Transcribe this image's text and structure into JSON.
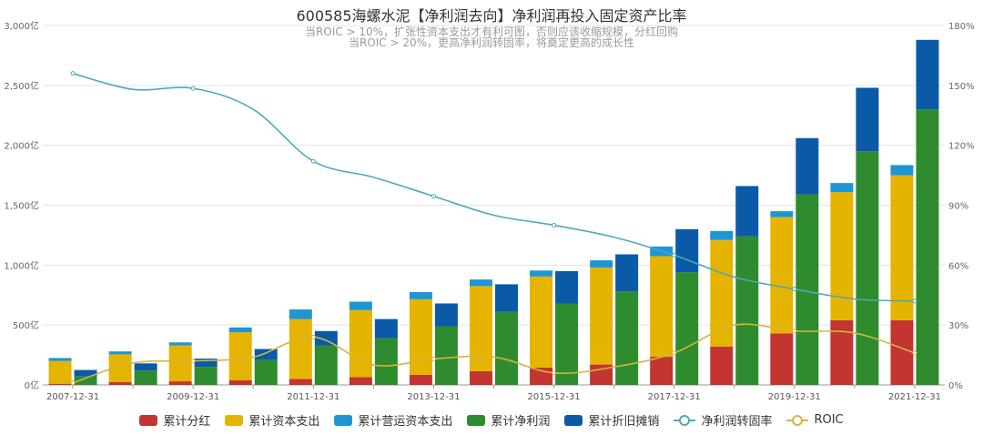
{
  "chart_data": {
    "type": "bar",
    "title": "600585海螺水泥【净利润去向】净利润再投入固定资产比率",
    "subtitle_lines": [
      "当ROIC > 10%，扩张性资本支出才有利可图，否则应该收缩规模，分红回购",
      "当ROIC > 20%，更高净利润转固率，将奠定更高的成长性"
    ],
    "categories": [
      "2007-12-31",
      "2008-12-31",
      "2009-12-31",
      "2010-12-31",
      "2011-12-31",
      "2012-12-31",
      "2013-12-31",
      "2014-12-31",
      "2015-12-31",
      "2016-12-31",
      "2017-12-31",
      "2018-12-31",
      "2019-12-31",
      "2020-12-31",
      "2021-12-31"
    ],
    "x_tick_labels": [
      "2007-12-31",
      "2009-12-31",
      "2011-12-31",
      "2013-12-31",
      "2015-12-31",
      "2017-12-31",
      "2019-12-31",
      "2021-12-31"
    ],
    "y_left": {
      "min": 0,
      "max": 3000,
      "step": 500,
      "tick_labels": [
        "0亿",
        "500亿",
        "1,000亿",
        "1,500亿",
        "2,000亿",
        "2,500亿",
        "3,000亿"
      ]
    },
    "y_right": {
      "min": 0,
      "max": 180,
      "step": 30,
      "tick_labels": [
        "0%",
        "30%",
        "60%",
        "90%",
        "120%",
        "150%",
        "180%"
      ]
    },
    "stack_a": {
      "label": "分红+资本支出+营运资本支出",
      "series": [
        {
          "name": "累计分红",
          "color": "#c23531",
          "values": [
            10,
            25,
            30,
            40,
            50,
            65,
            85,
            115,
            145,
            170,
            235,
            320,
            430,
            540,
            540
          ]
        },
        {
          "name": "累计资本支出",
          "color": "#e5b400",
          "values": [
            190,
            230,
            300,
            400,
            500,
            560,
            630,
            710,
            760,
            810,
            840,
            890,
            970,
            1070,
            1210
          ]
        },
        {
          "name": "累计营运资本支出",
          "color": "#1e96d4",
          "values": [
            25,
            25,
            25,
            40,
            80,
            70,
            60,
            55,
            50,
            60,
            80,
            75,
            50,
            75,
            85
          ]
        }
      ]
    },
    "stack_b": {
      "label": "净利润+折旧摊销",
      "series": [
        {
          "name": "累计净利润",
          "color": "#2e8b2e",
          "values": [
            70,
            120,
            150,
            210,
            330,
            390,
            490,
            610,
            680,
            780,
            940,
            1240,
            1590,
            1950,
            2300
          ]
        },
        {
          "name": "累计折旧摊销",
          "color": "#0a5aa8",
          "values": [
            55,
            60,
            70,
            90,
            120,
            160,
            190,
            230,
            270,
            310,
            360,
            420,
            470,
            530,
            580
          ]
        }
      ]
    },
    "lines": [
      {
        "name": "净利润转固率",
        "color": "#4fa9b5",
        "axis": "right",
        "values": [
          156,
          148,
          148.5,
          138,
          112,
          104,
          94.5,
          85,
          80,
          74,
          65,
          54,
          48,
          43,
          42
        ]
      },
      {
        "name": "ROIC",
        "color": "#d4b53e",
        "axis": "right",
        "values": [
          1,
          11,
          12,
          14,
          24,
          10,
          13,
          14,
          6,
          9,
          16,
          30,
          27,
          26,
          16
        ]
      }
    ],
    "legend": [
      "累计分红",
      "累计资本支出",
      "累计营运资本支出",
      "累计净利润",
      "累计折旧摊销",
      "净利润转固率",
      "ROIC"
    ],
    "grid": true,
    "legend_position": "bottom-center"
  }
}
